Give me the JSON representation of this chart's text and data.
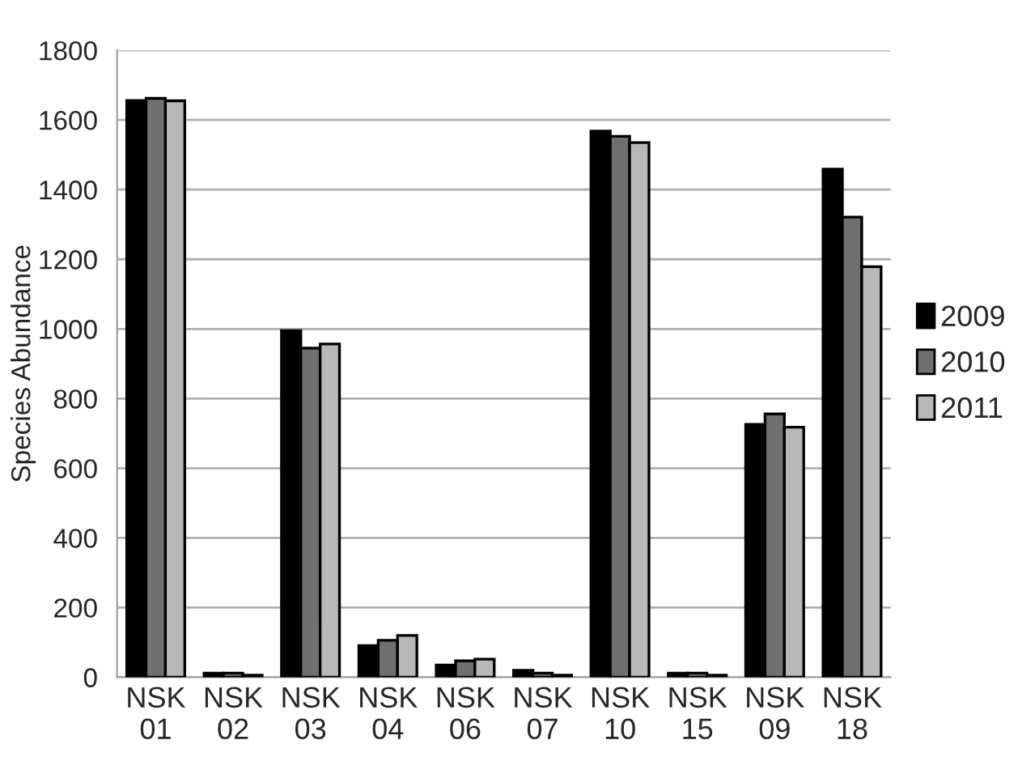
{
  "chart_data": {
    "type": "bar",
    "ylabel": "Species Abundance",
    "categories": [
      "NSK\n01",
      "NSK\n02",
      "NSK\n03",
      "NSK\n04",
      "NSK\n06",
      "NSK\n07",
      "NSK\n10",
      "NSK\n15",
      "NSK\n09",
      "NSK\n18"
    ],
    "series": [
      {
        "name": "2009",
        "color": "#000000",
        "values": [
          1656,
          12,
          995,
          91,
          35,
          20,
          1568,
          12,
          726,
          1459
        ]
      },
      {
        "name": "2010",
        "color": "#707070",
        "values": [
          1662,
          12,
          945,
          106,
          47,
          12,
          1553,
          12,
          756,
          1321
        ]
      },
      {
        "name": "2011",
        "color": "#b8b8b8",
        "values": [
          1655,
          6,
          957,
          120,
          52,
          6,
          1535,
          6,
          718,
          1179
        ]
      }
    ],
    "ylim": [
      0,
      1800
    ],
    "yticks": [
      0,
      200,
      400,
      600,
      800,
      1000,
      1200,
      1400,
      1600,
      1800
    ],
    "grid": "y",
    "legend": "right"
  }
}
